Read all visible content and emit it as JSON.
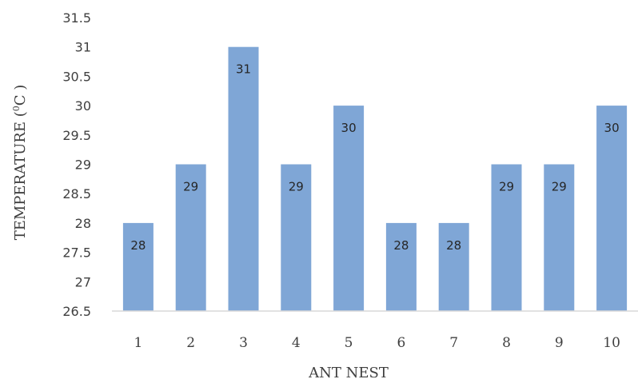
{
  "chart_data": {
    "type": "bar",
    "categories": [
      "1",
      "2",
      "3",
      "4",
      "5",
      "6",
      "7",
      "8",
      "9",
      "10"
    ],
    "values": [
      28,
      29,
      31,
      29,
      30,
      28,
      28,
      29,
      29,
      30
    ],
    "data_labels": [
      "28",
      "29",
      "31",
      "29",
      "30",
      "28",
      "28",
      "29",
      "29",
      "30"
    ],
    "yticks": [
      "26.5",
      "27",
      "27.5",
      "28",
      "28.5",
      "29",
      "29.5",
      "30",
      "30.5",
      "31",
      "31.5"
    ],
    "ylim": [
      26.5,
      31.5
    ],
    "xlabel": "ANT NEST",
    "ylabel_main": "TEMPERATURE (",
    "ylabel_sup": "0",
    "ylabel_unit": "C )",
    "grid": false,
    "bar_color": "#7fa6d6",
    "axis_color": "#d9d9d9"
  }
}
